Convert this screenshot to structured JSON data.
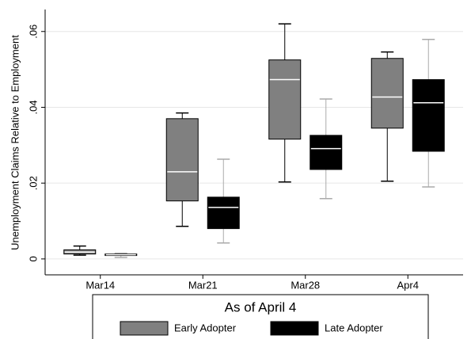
{
  "chart_data": {
    "type": "box",
    "y_label": "Unemployment Claims Relative to Employment",
    "categories": [
      "Mar14",
      "Mar21",
      "Mar28",
      "Apr4"
    ],
    "legend_title": "As of April 4",
    "ylim": [
      -0.0042,
      0.0658
    ],
    "yticks": [
      0,
      {
        "value": 0.02,
        "label": ".02"
      },
      {
        "value": 0.04,
        "label": ".04"
      },
      {
        "value": 0.06,
        "label": ".06"
      }
    ],
    "grid": true,
    "legend": "bottom",
    "series": [
      {
        "name": "Early Adopter",
        "color": "#808080",
        "whisker_color": "#000000",
        "median_color": "#ffffff",
        "boxes": [
          {
            "min": 0.001,
            "q1": 0.0013,
            "median": 0.0018,
            "q3": 0.0024,
            "max": 0.0034
          },
          {
            "min": 0.0086,
            "q1": 0.0153,
            "median": 0.023,
            "q3": 0.037,
            "max": 0.0385
          },
          {
            "min": 0.0203,
            "q1": 0.0316,
            "median": 0.0473,
            "q3": 0.0525,
            "max": 0.062
          },
          {
            "min": 0.0205,
            "q1": 0.0345,
            "median": 0.0427,
            "q3": 0.0529,
            "max": 0.0546
          }
        ]
      },
      {
        "name": "Late Adopter",
        "color": "#000000",
        "whisker_color": "#aaaaaa",
        "median_color": "#ffffff",
        "boxes": [
          {
            "min": 0.0004,
            "q1": 0.0009,
            "median": 0.0011,
            "q3": 0.0013,
            "max": 0.0015
          },
          {
            "min": 0.0042,
            "q1": 0.008,
            "median": 0.0136,
            "q3": 0.0163,
            "max": 0.0263
          },
          {
            "min": 0.0159,
            "q1": 0.0236,
            "median": 0.0291,
            "q3": 0.0326,
            "max": 0.0422
          },
          {
            "min": 0.019,
            "q1": 0.0284,
            "median": 0.0412,
            "q3": 0.0473,
            "max": 0.0579
          }
        ]
      }
    ]
  }
}
